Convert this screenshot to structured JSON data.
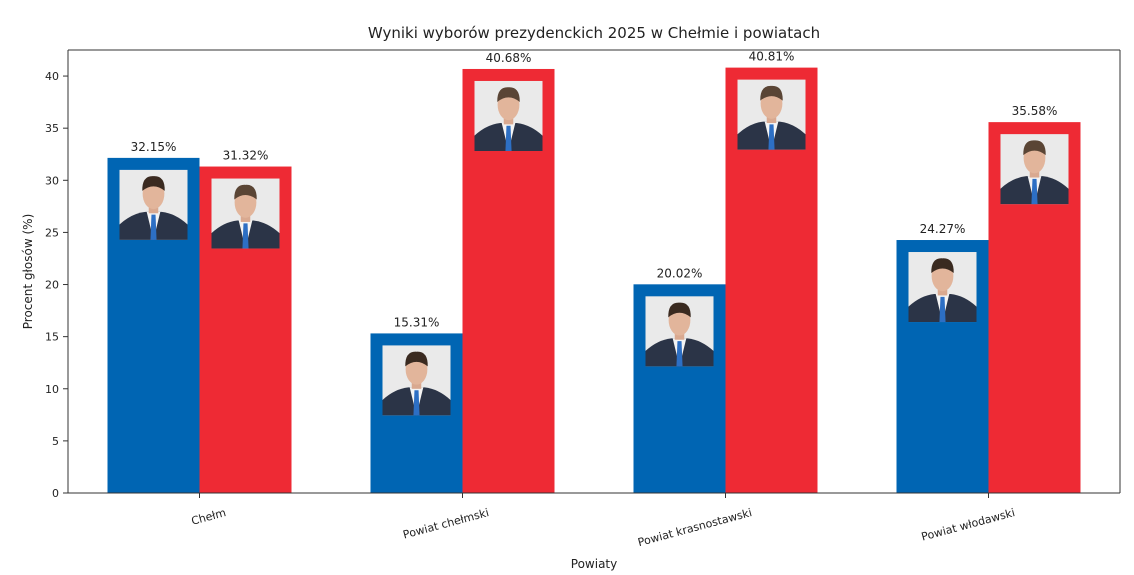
{
  "chart_data": {
    "type": "bar",
    "title": "Wyniki wyborów prezydenckich 2025 w Chełmie i powiatach",
    "xlabel": "Powiaty",
    "ylabel": "Procent głosów (%)",
    "ylim": [
      0,
      42.5
    ],
    "yticks": [
      0,
      5,
      10,
      15,
      20,
      25,
      30,
      35,
      40
    ],
    "categories": [
      "Chełm",
      "Powiat chełmski",
      "Powiat krasnostawski",
      "Powiat włodawski"
    ],
    "series": [
      {
        "color": "#0065b3",
        "values": [
          32.15,
          15.31,
          20.02,
          24.27
        ],
        "labels": [
          "32.15%",
          "15.31%",
          "20.02%",
          "24.27%"
        ]
      },
      {
        "color": "#ee2a34",
        "values": [
          31.32,
          40.68,
          40.81,
          35.58
        ],
        "labels": [
          "31.32%",
          "40.68%",
          "40.81%",
          "35.58%"
        ]
      }
    ],
    "grid": false,
    "legend": "none",
    "bar_photos": "portrait-photo"
  }
}
